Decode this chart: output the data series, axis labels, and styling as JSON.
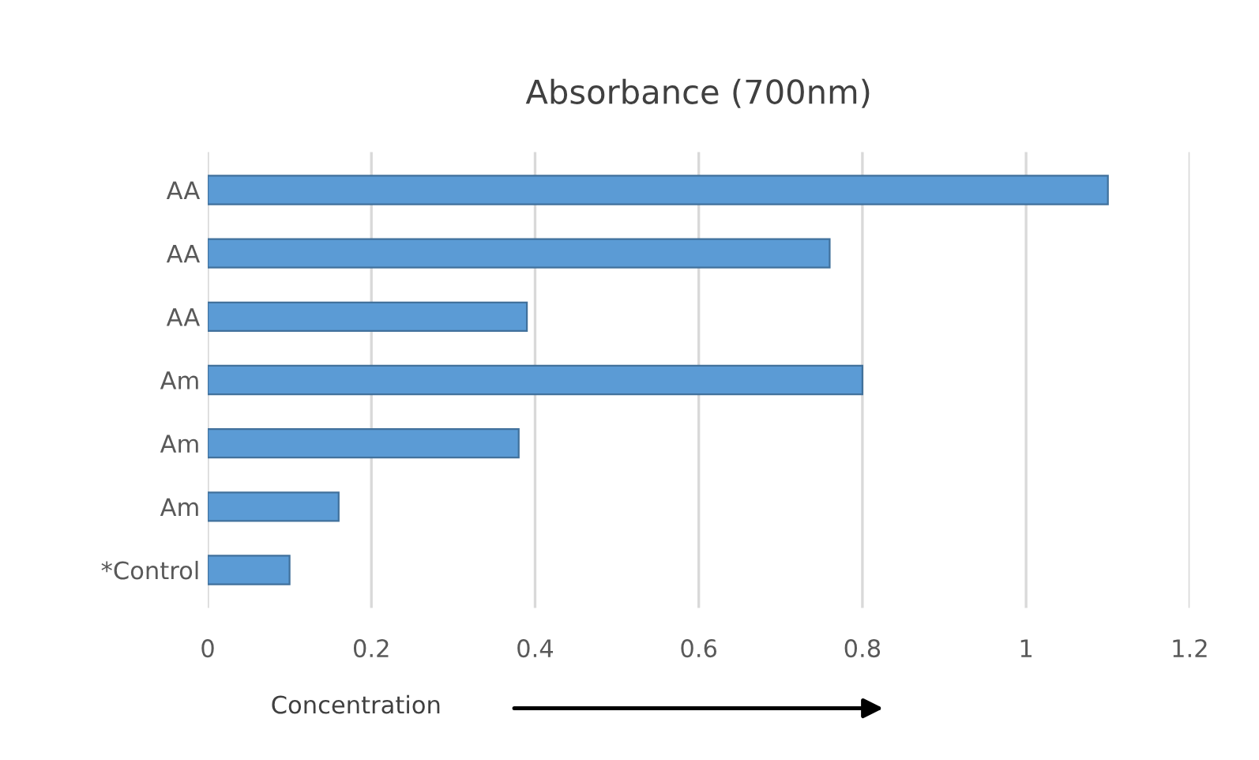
{
  "chart_data": {
    "type": "bar",
    "orientation": "horizontal",
    "title": "Absorbance (700nm)",
    "categories": [
      "AA",
      "AA",
      "AA",
      "Am",
      "Am",
      "Am",
      "*Control"
    ],
    "values": [
      1.1,
      0.76,
      0.39,
      0.8,
      0.38,
      0.16,
      0.1
    ],
    "color": "#5b9bd5",
    "xlim": [
      0,
      1.2
    ],
    "xticks": [
      0,
      0.2,
      0.4,
      0.6,
      0.8,
      1,
      1.2
    ],
    "grid": "x",
    "annotations": [
      "Concentration"
    ]
  }
}
